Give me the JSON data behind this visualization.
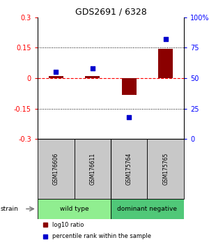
{
  "title": "GDS2691 / 6328",
  "samples": [
    "GSM176606",
    "GSM176611",
    "GSM175764",
    "GSM175765"
  ],
  "log10_ratio": [
    0.01,
    0.012,
    -0.082,
    0.145
  ],
  "percentile_rank": [
    55,
    58,
    18,
    82
  ],
  "ylim_left": [
    -0.3,
    0.3
  ],
  "ylim_right": [
    0,
    100
  ],
  "yticks_left": [
    -0.3,
    -0.15,
    0,
    0.15,
    0.3
  ],
  "ytick_labels_left": [
    "-0.3",
    "-0.15",
    "0",
    "0.15",
    "0.3"
  ],
  "yticks_right": [
    0,
    25,
    50,
    75,
    100
  ],
  "ytick_labels_right": [
    "0",
    "25",
    "50",
    "75",
    "100%"
  ],
  "hlines": [
    0.15,
    -0.15
  ],
  "groups": [
    {
      "label": "wild type",
      "samples": [
        0,
        1
      ],
      "color": "#90EE90"
    },
    {
      "label": "dominant negative",
      "samples": [
        2,
        3
      ],
      "color": "#50C878"
    }
  ],
  "bar_color": "#8B0000",
  "point_color": "#0000CD",
  "bar_width": 0.4,
  "point_size": 25,
  "background_color": "#ffffff",
  "label_box_color": "#c8c8c8",
  "strain_arrow_color": "#808080",
  "legend_red_label": "log10 ratio",
  "legend_blue_label": "percentile rank within the sample"
}
